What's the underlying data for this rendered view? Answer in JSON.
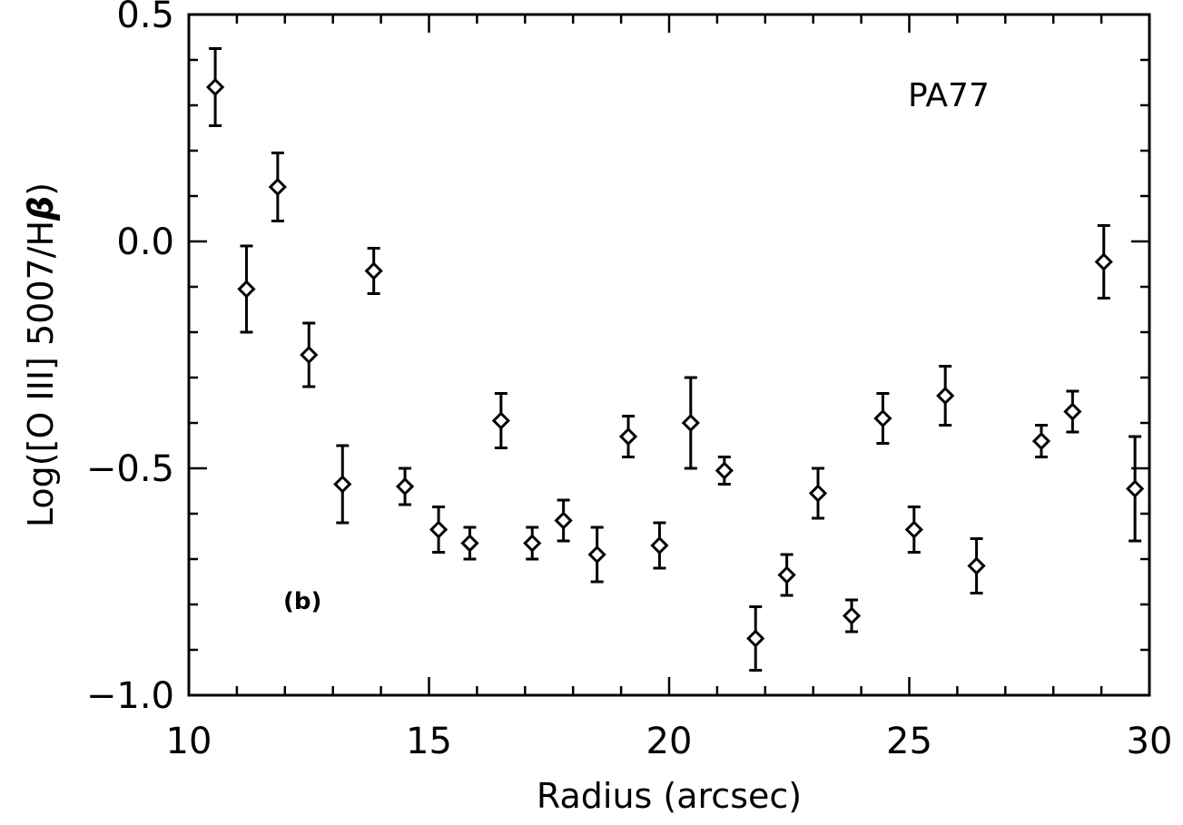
{
  "chart_data": {
    "type": "scatter",
    "xlabel": "Radius (arcsec)",
    "ylabel": "Log([O III] 5007/H",
    "ylabel_symbol": "β",
    "ylabel_close": ")",
    "xlim": [
      10,
      30
    ],
    "ylim": [
      -1.0,
      0.5
    ],
    "x_ticks": [
      10,
      15,
      20,
      25,
      30
    ],
    "x_tick_labels": [
      "10",
      "15",
      "20",
      "25",
      "30"
    ],
    "y_ticks": [
      0.5,
      0.0,
      -0.5,
      -1.0
    ],
    "y_tick_labels": [
      "0.5",
      "0.0",
      "−0.5",
      "−1.0"
    ],
    "annotations": [
      "PA77",
      "(b)"
    ],
    "marker": "diamond",
    "error_bars": true,
    "grid": false,
    "points": [
      {
        "x": 10.55,
        "y": 0.34,
        "err": 0.085
      },
      {
        "x": 11.2,
        "y": -0.105,
        "err": 0.095
      },
      {
        "x": 11.85,
        "y": 0.12,
        "err": 0.075
      },
      {
        "x": 12.5,
        "y": -0.25,
        "err": 0.07
      },
      {
        "x": 13.2,
        "y": -0.535,
        "err": 0.085
      },
      {
        "x": 13.85,
        "y": -0.065,
        "err": 0.05
      },
      {
        "x": 14.5,
        "y": -0.54,
        "err": 0.04
      },
      {
        "x": 15.2,
        "y": -0.635,
        "err": 0.05
      },
      {
        "x": 15.85,
        "y": -0.665,
        "err": 0.035
      },
      {
        "x": 16.5,
        "y": -0.395,
        "err": 0.06
      },
      {
        "x": 17.15,
        "y": -0.665,
        "err": 0.035
      },
      {
        "x": 17.8,
        "y": -0.615,
        "err": 0.045
      },
      {
        "x": 18.5,
        "y": -0.69,
        "err": 0.06
      },
      {
        "x": 19.15,
        "y": -0.43,
        "err": 0.045
      },
      {
        "x": 19.8,
        "y": -0.67,
        "err": 0.05
      },
      {
        "x": 20.45,
        "y": -0.4,
        "err": 0.1
      },
      {
        "x": 21.15,
        "y": -0.505,
        "err": 0.03
      },
      {
        "x": 21.8,
        "y": -0.875,
        "err": 0.07
      },
      {
        "x": 22.45,
        "y": -0.735,
        "err": 0.045
      },
      {
        "x": 23.1,
        "y": -0.555,
        "err": 0.055
      },
      {
        "x": 23.8,
        "y": -0.825,
        "err": 0.035
      },
      {
        "x": 24.45,
        "y": -0.39,
        "err": 0.055
      },
      {
        "x": 25.1,
        "y": -0.635,
        "err": 0.05
      },
      {
        "x": 25.75,
        "y": -0.34,
        "err": 0.065
      },
      {
        "x": 26.4,
        "y": -0.715,
        "err": 0.06
      },
      {
        "x": 27.75,
        "y": -0.44,
        "err": 0.035
      },
      {
        "x": 28.4,
        "y": -0.375,
        "err": 0.045
      },
      {
        "x": 29.05,
        "y": -0.045,
        "err": 0.08
      },
      {
        "x": 29.7,
        "y": -0.545,
        "err": 0.115
      }
    ]
  }
}
